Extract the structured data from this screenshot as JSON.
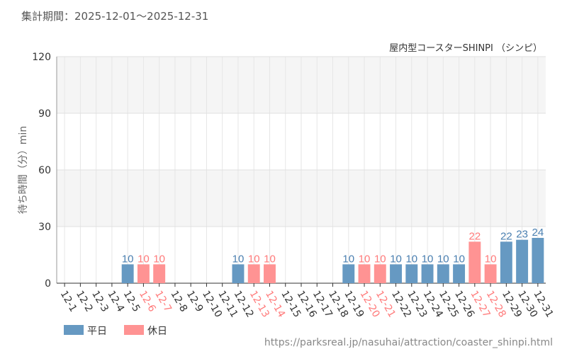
{
  "header": {
    "period": "集計期間：2025-12-01〜2025-12-31"
  },
  "source": "https://parksreal.jp/nasuhai/attraction/coaster_shinpi.html",
  "chart_data": {
    "type": "bar",
    "title": "屋内型コースターSHINPI （シンピ）",
    "ylabel": "待ち時間（分）min",
    "ylim": [
      0,
      120
    ],
    "yticks": [
      0,
      30,
      60,
      90,
      120
    ],
    "grid": true,
    "legend_placement": "bottom-left",
    "colors": {
      "weekday": "#6699c2",
      "holiday": "#ff9393",
      "weekday_label": "#4a7fb0",
      "holiday_label": "#ff7a7a"
    },
    "series": [
      {
        "name": "平日",
        "key": "weekday"
      },
      {
        "name": "休日",
        "key": "holiday"
      }
    ],
    "categories": [
      "12-1",
      "12-2",
      "12-3",
      "12-4",
      "12-5",
      "12-6",
      "12-7",
      "12-8",
      "12-9",
      "12-10",
      "12-11",
      "12-12",
      "12-13",
      "12-14",
      "12-15",
      "12-16",
      "12-17",
      "12-18",
      "12-19",
      "12-20",
      "12-21",
      "12-22",
      "12-23",
      "12-24",
      "12-25",
      "12-26",
      "12-27",
      "12-28",
      "12-29",
      "12-30",
      "12-31"
    ],
    "values": [
      null,
      null,
      null,
      null,
      10,
      10,
      10,
      null,
      null,
      null,
      null,
      10,
      10,
      10,
      null,
      null,
      null,
      null,
      10,
      10,
      10,
      10,
      10,
      10,
      10,
      10,
      22,
      10,
      22,
      23,
      24
    ],
    "day_type": [
      "weekday",
      "weekday",
      "weekday",
      "weekday",
      "weekday",
      "holiday",
      "holiday",
      "weekday",
      "weekday",
      "weekday",
      "weekday",
      "weekday",
      "holiday",
      "holiday",
      "weekday",
      "weekday",
      "weekday",
      "weekday",
      "weekday",
      "holiday",
      "holiday",
      "weekday",
      "weekday",
      "weekday",
      "weekday",
      "weekday",
      "holiday",
      "holiday",
      "weekday",
      "weekday",
      "weekday"
    ]
  }
}
